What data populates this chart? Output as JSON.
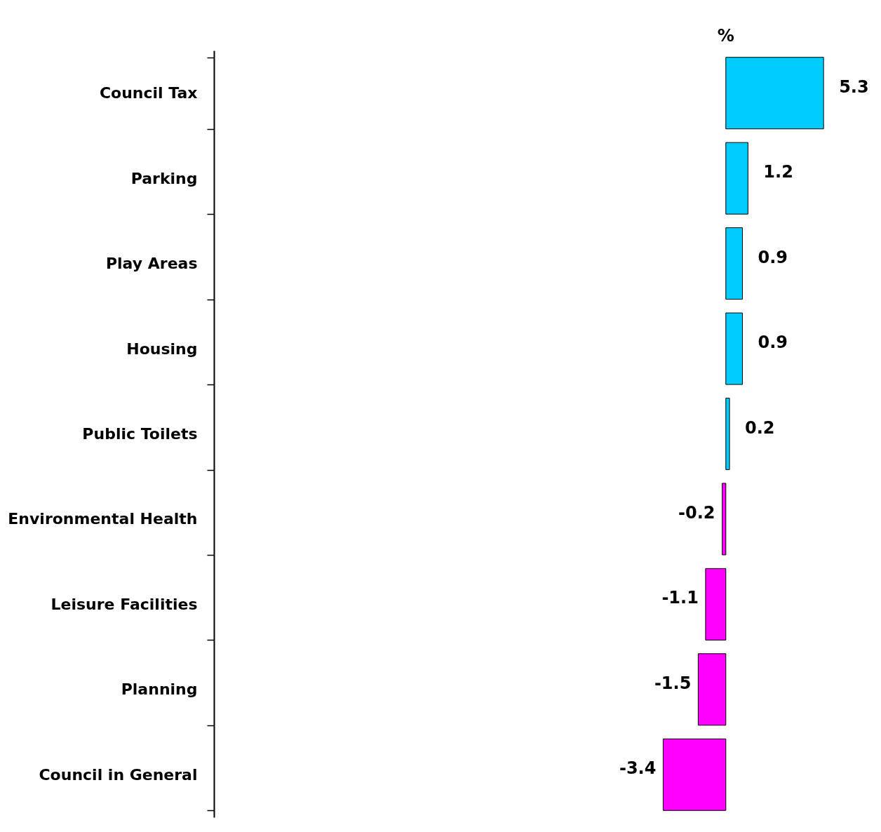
{
  "chart_data": {
    "type": "bar",
    "orientation": "horizontal",
    "title": "%",
    "categories": [
      "Council Tax",
      "Parking",
      "Play Areas",
      "Housing",
      "Public Toilets",
      "Environmental Health",
      "Leisure Facilities",
      "Planning",
      "Council in General"
    ],
    "values": [
      5.3,
      1.2,
      0.9,
      0.9,
      0.2,
      -0.2,
      -1.1,
      -1.5,
      -3.4
    ],
    "colors": [
      "#00ccff",
      "#00ccff",
      "#00ccff",
      "#00ccff",
      "#00ccff",
      "#ff00ff",
      "#ff00ff",
      "#ff00ff",
      "#ff00ff"
    ],
    "data_labels": true,
    "grid": false
  }
}
